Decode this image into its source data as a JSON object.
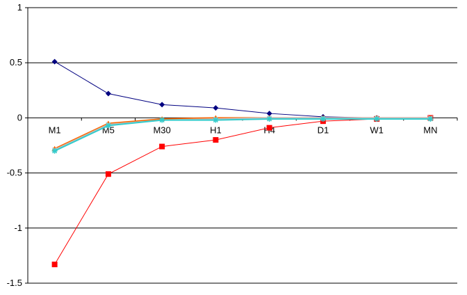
{
  "chart_data": {
    "type": "line",
    "categories": [
      "M1",
      "M5",
      "M30",
      "H1",
      "H4",
      "D1",
      "W1",
      "MN"
    ],
    "ylim": [
      -1.5,
      1
    ],
    "yticks": [
      1,
      0.5,
      0,
      -0.5,
      -1,
      -1.5
    ],
    "ytick_labels": [
      "1",
      "0.5",
      "0",
      "-0.5",
      "-1",
      "-1.5"
    ],
    "grid": "horizontal",
    "legend": "none",
    "series": [
      {
        "color": "#000080",
        "marker": "diamond",
        "values": [
          0.51,
          0.22,
          0.12,
          0.09,
          0.04,
          0.01,
          0.0,
          0.0
        ]
      },
      {
        "color": "#ff0000",
        "marker": "square",
        "values": [
          -1.33,
          -0.51,
          -0.26,
          -0.2,
          -0.09,
          -0.03,
          -0.01,
          0.0
        ]
      },
      {
        "color": "#ff6600",
        "marker": "triangle",
        "values": [
          -0.28,
          -0.05,
          -0.01,
          0.0,
          0.0,
          0.0,
          0.0,
          0.0
        ]
      },
      {
        "color": "#c0c0c0",
        "marker": "x",
        "values": [
          -0.29,
          -0.06,
          -0.02,
          -0.01,
          0.0,
          0.0,
          0.0,
          0.0
        ]
      },
      {
        "color": "#33cccc",
        "marker": "star",
        "values": [
          -0.3,
          -0.07,
          -0.02,
          -0.02,
          -0.01,
          -0.01,
          -0.01,
          -0.01
        ]
      }
    ]
  }
}
